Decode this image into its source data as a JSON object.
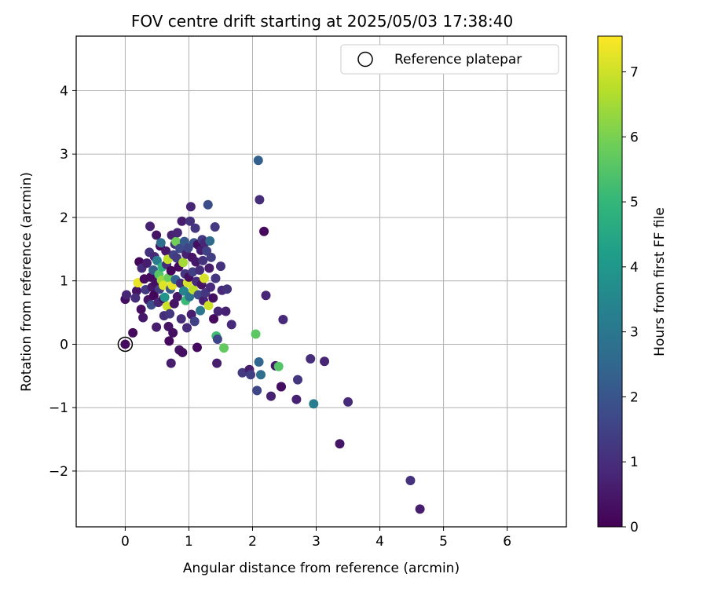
{
  "chart_data": {
    "type": "scatter",
    "title": "FOV centre drift starting at 2025/05/03 17:38:40",
    "xlabel": "Angular distance from reference (arcmin)",
    "ylabel": "Rotation from reference (arcmin)",
    "xlim": [
      -0.77,
      6.93
    ],
    "ylim": [
      -2.88,
      4.86
    ],
    "xticks": [
      0,
      1,
      2,
      3,
      4,
      5,
      6
    ],
    "yticks": [
      -2,
      -1,
      0,
      1,
      2,
      3,
      4
    ],
    "grid": true,
    "legend": {
      "position": "top-right",
      "entries": [
        {
          "label": "Reference platepar",
          "marker": "open-circle"
        }
      ]
    },
    "reference_point": {
      "x": 0,
      "y": 0
    },
    "colorbar": {
      "label": "Hours from first FF file",
      "colormap": "viridis",
      "range": [
        0,
        7.55
      ],
      "ticks": [
        0,
        1,
        2,
        3,
        4,
        5,
        6,
        7
      ]
    },
    "colormap_stops": [
      "#440154",
      "#482878",
      "#3e4989",
      "#31688e",
      "#26828e",
      "#1f9e89",
      "#35b779",
      "#6ece58",
      "#b5de2b",
      "#fde725"
    ],
    "series": [
      {
        "points": [
          {
            "x": 0.0,
            "y": 0.71,
            "c": 0.3
          },
          {
            "x": 0.02,
            "y": 0.78,
            "c": 0.8
          },
          {
            "x": 0.12,
            "y": 0.18,
            "c": 0.2
          },
          {
            "x": 0.18,
            "y": 0.84,
            "c": 0.4
          },
          {
            "x": 0.16,
            "y": 0.73,
            "c": 1.0
          },
          {
            "x": 0.2,
            "y": 0.97,
            "c": 7.3
          },
          {
            "x": 0.22,
            "y": 1.3,
            "c": 0.1
          },
          {
            "x": 0.25,
            "y": 0.55,
            "c": 0.3
          },
          {
            "x": 0.28,
            "y": 0.42,
            "c": 0.5
          },
          {
            "x": 0.26,
            "y": 1.2,
            "c": 0.9
          },
          {
            "x": 0.3,
            "y": 1.03,
            "c": 0.2
          },
          {
            "x": 0.32,
            "y": 0.86,
            "c": 1.3
          },
          {
            "x": 0.34,
            "y": 1.28,
            "c": 0.6
          },
          {
            "x": 0.36,
            "y": 0.7,
            "c": 0.4
          },
          {
            "x": 0.38,
            "y": 1.45,
            "c": 1.1
          },
          {
            "x": 0.39,
            "y": 1.86,
            "c": 0.7
          },
          {
            "x": 0.4,
            "y": 1.06,
            "c": 0.2
          },
          {
            "x": 0.41,
            "y": 0.62,
            "c": 1.8
          },
          {
            "x": 0.42,
            "y": 0.9,
            "c": 0.5
          },
          {
            "x": 0.44,
            "y": 1.17,
            "c": 2.2
          },
          {
            "x": 0.45,
            "y": 0.77,
            "c": 0.1
          },
          {
            "x": 0.46,
            "y": 1.38,
            "c": 0.9
          },
          {
            "x": 0.48,
            "y": 0.98,
            "c": 0.3
          },
          {
            "x": 0.49,
            "y": 1.72,
            "c": 0.4
          },
          {
            "x": 0.49,
            "y": 0.27,
            "c": 0.6
          },
          {
            "x": 0.5,
            "y": 1.32,
            "c": 3.2
          },
          {
            "x": 0.52,
            "y": 0.66,
            "c": 0.8
          },
          {
            "x": 0.53,
            "y": 1.1,
            "c": 5.5
          },
          {
            "x": 0.54,
            "y": 0.87,
            "c": 1.4
          },
          {
            "x": 0.55,
            "y": 1.55,
            "c": 0.2
          },
          {
            "x": 0.56,
            "y": 1.6,
            "c": 2.7
          },
          {
            "x": 0.57,
            "y": 1.01,
            "c": 6.4
          },
          {
            "x": 0.58,
            "y": 1.22,
            "c": 4.8
          },
          {
            "x": 0.6,
            "y": 0.93,
            "c": 7.2
          },
          {
            "x": 0.6,
            "y": 0.72,
            "c": 0.3
          },
          {
            "x": 0.61,
            "y": 0.45,
            "c": 1.0
          },
          {
            "x": 0.62,
            "y": 0.74,
            "c": 3.9
          },
          {
            "x": 0.64,
            "y": 1.47,
            "c": 0.5
          },
          {
            "x": 0.65,
            "y": 1.26,
            "c": 0.9
          },
          {
            "x": 0.66,
            "y": 0.6,
            "c": 7.0
          },
          {
            "x": 0.67,
            "y": 1.34,
            "c": 6.9
          },
          {
            "x": 0.68,
            "y": 1.05,
            "c": 5.8
          },
          {
            "x": 0.68,
            "y": 0.28,
            "c": 0.4
          },
          {
            "x": 0.69,
            "y": 0.05,
            "c": 0.2
          },
          {
            "x": 0.7,
            "y": 0.48,
            "c": 1.2
          },
          {
            "x": 0.71,
            "y": 0.87,
            "c": 2.0
          },
          {
            "x": 0.72,
            "y": -0.3,
            "c": 0.6
          },
          {
            "x": 0.72,
            "y": 1.16,
            "c": 0.1
          },
          {
            "x": 0.73,
            "y": 1.72,
            "c": 0.7
          },
          {
            "x": 0.74,
            "y": 0.93,
            "c": 7.3
          },
          {
            "x": 0.75,
            "y": 0.18,
            "c": 0.3
          },
          {
            "x": 0.76,
            "y": 1.41,
            "c": 1.5
          },
          {
            "x": 0.77,
            "y": 0.64,
            "c": 0.4
          },
          {
            "x": 0.78,
            "y": 1.58,
            "c": 1.1
          },
          {
            "x": 0.79,
            "y": 1.02,
            "c": 2.4
          },
          {
            "x": 0.8,
            "y": 1.62,
            "c": 5.9
          },
          {
            "x": 0.81,
            "y": 1.36,
            "c": 1.3
          },
          {
            "x": 0.82,
            "y": 1.76,
            "c": 0.8
          },
          {
            "x": 0.82,
            "y": 0.75,
            "c": 0.5
          },
          {
            "x": 0.84,
            "y": 1.22,
            "c": 0.2
          },
          {
            "x": 0.85,
            "y": -0.09,
            "c": 0.4
          },
          {
            "x": 0.86,
            "y": 1.51,
            "c": 1.7
          },
          {
            "x": 0.87,
            "y": 0.96,
            "c": 0.9
          },
          {
            "x": 0.88,
            "y": 0.4,
            "c": 1.0
          },
          {
            "x": 0.89,
            "y": 1.94,
            "c": 0.6
          },
          {
            "x": 0.9,
            "y": -0.13,
            "c": 0.3
          },
          {
            "x": 0.91,
            "y": 1.29,
            "c": 6.5
          },
          {
            "x": 0.92,
            "y": 0.84,
            "c": 3.4
          },
          {
            "x": 0.93,
            "y": 1.62,
            "c": 2.1
          },
          {
            "x": 0.94,
            "y": 1.11,
            "c": 1.2
          },
          {
            "x": 0.95,
            "y": 0.69,
            "c": 5.1
          },
          {
            "x": 0.96,
            "y": 1.42,
            "c": 0.7
          },
          {
            "x": 0.97,
            "y": 0.26,
            "c": 1.0
          },
          {
            "x": 0.98,
            "y": 0.97,
            "c": 7.1
          },
          {
            "x": 0.99,
            "y": 1.52,
            "c": 1.6
          },
          {
            "x": 1.0,
            "y": 1.06,
            "c": 0.3
          },
          {
            "x": 1.01,
            "y": 0.75,
            "c": 2.9
          },
          {
            "x": 1.02,
            "y": 1.94,
            "c": 1.1
          },
          {
            "x": 1.03,
            "y": 2.17,
            "c": 0.8
          },
          {
            "x": 1.04,
            "y": 0.47,
            "c": 0.6
          },
          {
            "x": 1.05,
            "y": 1.37,
            "c": 0.4
          },
          {
            "x": 1.06,
            "y": 1.14,
            "c": 1.4
          },
          {
            "x": 1.07,
            "y": 0.86,
            "c": 6.8
          },
          {
            "x": 1.08,
            "y": 1.6,
            "c": 1.9
          },
          {
            "x": 1.09,
            "y": 0.36,
            "c": 1.5
          },
          {
            "x": 1.1,
            "y": 1.83,
            "c": 1.2
          },
          {
            "x": 1.11,
            "y": 1.3,
            "c": 0.5
          },
          {
            "x": 1.12,
            "y": 0.99,
            "c": 0.9
          },
          {
            "x": 1.13,
            "y": -0.05,
            "c": 0.2
          },
          {
            "x": 1.14,
            "y": 1.57,
            "c": 0.3
          },
          {
            "x": 1.15,
            "y": 0.78,
            "c": 1.7
          },
          {
            "x": 1.17,
            "y": 1.17,
            "c": 1.0
          },
          {
            "x": 1.18,
            "y": 0.53,
            "c": 3.0
          },
          {
            "x": 1.19,
            "y": 1.48,
            "c": 0.6
          },
          {
            "x": 1.2,
            "y": 0.94,
            "c": 0.4
          },
          {
            "x": 1.21,
            "y": 1.65,
            "c": 1.3
          },
          {
            "x": 1.22,
            "y": 1.32,
            "c": 1.1
          },
          {
            "x": 1.23,
            "y": 0.69,
            "c": 0.7
          },
          {
            "x": 1.24,
            "y": 1.04,
            "c": 7.1
          },
          {
            "x": 1.25,
            "y": 1.6,
            "c": 0.8
          },
          {
            "x": 1.26,
            "y": 0.81,
            "c": 1.2
          },
          {
            "x": 1.28,
            "y": 1.47,
            "c": 1.5
          },
          {
            "x": 1.3,
            "y": 2.2,
            "c": 1.8
          },
          {
            "x": 1.31,
            "y": 0.61,
            "c": 7.0
          },
          {
            "x": 1.32,
            "y": 1.2,
            "c": 0.6
          },
          {
            "x": 1.33,
            "y": 1.63,
            "c": 2.6
          },
          {
            "x": 1.34,
            "y": 0.9,
            "c": 0.9
          },
          {
            "x": 1.35,
            "y": 1.37,
            "c": 1.4
          },
          {
            "x": 1.38,
            "y": 0.73,
            "c": 0.3
          },
          {
            "x": 1.39,
            "y": 0.4,
            "c": 0.2
          },
          {
            "x": 1.41,
            "y": 1.85,
            "c": 1.3
          },
          {
            "x": 1.42,
            "y": 1.04,
            "c": 1.2
          },
          {
            "x": 1.43,
            "y": 0.13,
            "c": 5.2
          },
          {
            "x": 1.44,
            "y": -0.3,
            "c": 0.6
          },
          {
            "x": 1.45,
            "y": 0.08,
            "c": 1.6
          },
          {
            "x": 1.46,
            "y": 0.52,
            "c": 0.8
          },
          {
            "x": 1.5,
            "y": 1.23,
            "c": 1.1
          },
          {
            "x": 1.52,
            "y": 0.85,
            "c": 0.9
          },
          {
            "x": 1.55,
            "y": -0.06,
            "c": 5.7
          },
          {
            "x": 1.58,
            "y": 0.52,
            "c": 0.7
          },
          {
            "x": 1.6,
            "y": 0.87,
            "c": 1.1
          },
          {
            "x": 1.67,
            "y": 0.31,
            "c": 0.9
          },
          {
            "x": 1.84,
            "y": -0.45,
            "c": 1.3
          },
          {
            "x": 1.95,
            "y": -0.4,
            "c": 0.6
          },
          {
            "x": 1.97,
            "y": -0.48,
            "c": 1.4
          },
          {
            "x": 2.05,
            "y": 0.16,
            "c": 5.6
          },
          {
            "x": 2.07,
            "y": -0.73,
            "c": 1.6
          },
          {
            "x": 2.09,
            "y": 2.9,
            "c": 2.3
          },
          {
            "x": 2.1,
            "y": -0.28,
            "c": 2.5
          },
          {
            "x": 2.11,
            "y": 2.28,
            "c": 1.0
          },
          {
            "x": 2.13,
            "y": -0.48,
            "c": 2.7
          },
          {
            "x": 2.18,
            "y": 1.78,
            "c": 0.2
          },
          {
            "x": 2.21,
            "y": 0.77,
            "c": 0.8
          },
          {
            "x": 2.29,
            "y": -0.82,
            "c": 0.7
          },
          {
            "x": 2.36,
            "y": -0.34,
            "c": 0.5
          },
          {
            "x": 2.41,
            "y": -0.35,
            "c": 5.5
          },
          {
            "x": 2.45,
            "y": -0.67,
            "c": 0.1
          },
          {
            "x": 2.45,
            "y": -0.67,
            "c": 0.3
          },
          {
            "x": 2.48,
            "y": 0.39,
            "c": 0.9
          },
          {
            "x": 2.69,
            "y": -0.87,
            "c": 0.7
          },
          {
            "x": 2.71,
            "y": -0.56,
            "c": 1.2
          },
          {
            "x": 2.91,
            "y": -0.23,
            "c": 1.0
          },
          {
            "x": 2.96,
            "y": -0.94,
            "c": 3.2
          },
          {
            "x": 3.13,
            "y": -0.27,
            "c": 0.8
          },
          {
            "x": 3.37,
            "y": -1.57,
            "c": 0.4
          },
          {
            "x": 3.5,
            "y": -0.91,
            "c": 0.9
          },
          {
            "x": 4.48,
            "y": -2.15,
            "c": 1.1
          },
          {
            "x": 4.63,
            "y": -2.6,
            "c": 0.6
          }
        ]
      }
    ]
  }
}
